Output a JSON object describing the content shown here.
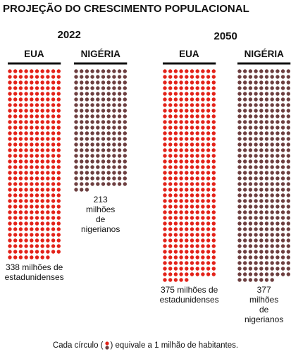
{
  "title": "PROJEÇÃO DO CRESCIMENTO POPULACIONAL",
  "note": [
    "Cada círculo (",
    ") equivale a 1 milhão de habitantes."
  ],
  "chart_data": [
    {
      "type": "pictogram",
      "title": "2022",
      "categories": [
        "EUA",
        "NIGÉRIA"
      ],
      "values": [
        338,
        213
      ],
      "value_labels": [
        "338 milhões de estadunidenses",
        "213 milhões de nigerianos"
      ],
      "colors": [
        "#e32219",
        "#6d3f40"
      ]
    },
    {
      "type": "pictogram",
      "title": "2050",
      "categories": [
        "EUA",
        "NIGÉRIA"
      ],
      "values": [
        375,
        377
      ],
      "value_labels": [
        "375 milhões de estadunidenses",
        "377 milhões de nigerianos"
      ],
      "colors": [
        "#e32219",
        "#6d3f40"
      ]
    }
  ]
}
